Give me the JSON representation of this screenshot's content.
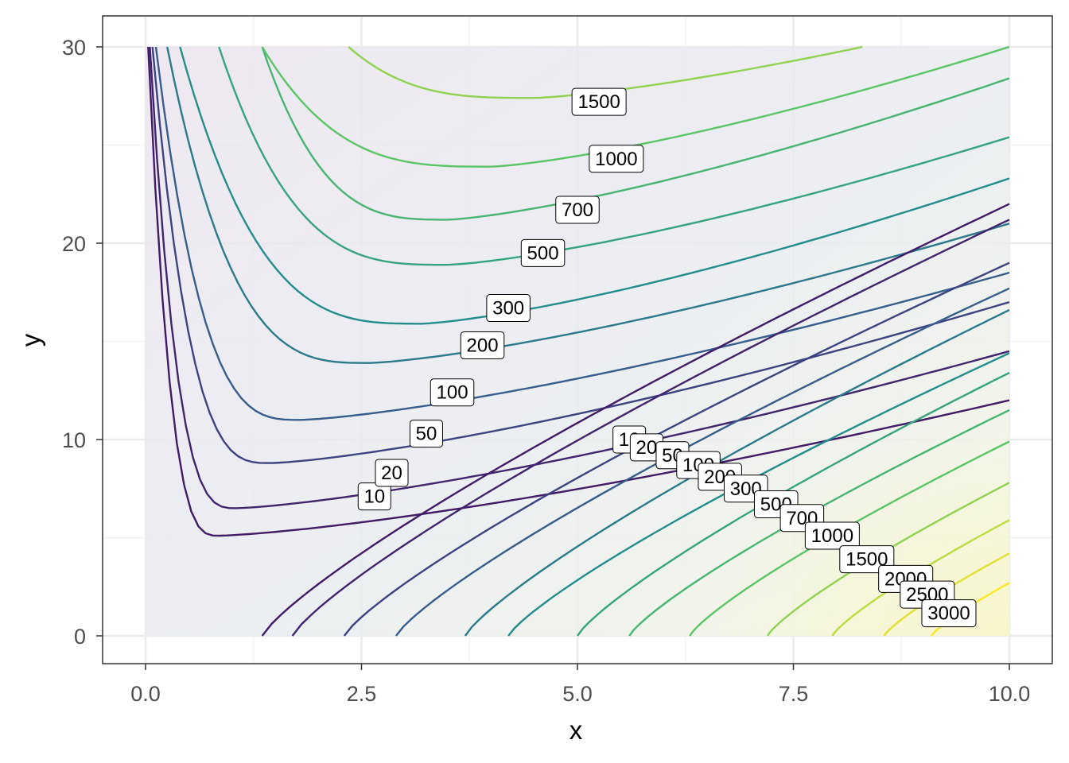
{
  "chart_data": {
    "type": "contour",
    "xlabel": "x",
    "ylabel": "y",
    "xlim": [
      0,
      10
    ],
    "ylim": [
      0,
      30
    ],
    "x_ticks": [
      "0.0",
      "2.5",
      "5.0",
      "7.5",
      "10.0"
    ],
    "y_ticks": [
      "0",
      "10",
      "20",
      "30"
    ],
    "grid": true,
    "theme": "bw",
    "contour_levels": [
      10,
      20,
      50,
      100,
      200,
      300,
      500,
      700,
      1000,
      1500,
      2000,
      2500,
      3000
    ],
    "visible_labels_upper": [
      "10",
      "20",
      "50",
      "100",
      "200",
      "300",
      "500",
      "700",
      "1000",
      "1500"
    ],
    "visible_labels_lower": [
      "10",
      "20",
      "50",
      "100",
      "200",
      "300",
      "500",
      "700",
      "1000",
      "1500",
      "2000",
      "2500",
      "3000"
    ],
    "colors": {
      "low": "#440154",
      "mid": "#21908C",
      "high": "#FDE725",
      "panel_border": "#333333",
      "grid_major": "#ebebeb",
      "grid_minor": "#f2f2f2"
    }
  }
}
